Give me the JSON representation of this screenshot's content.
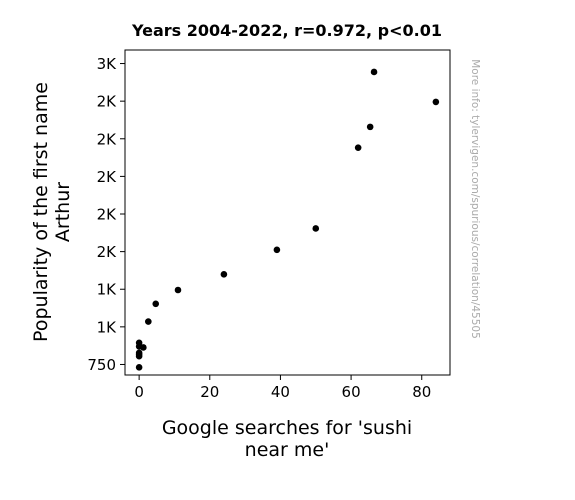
{
  "chart_data": {
    "type": "scatter",
    "title": "Years 2004-2022, r=0.972, p<0.01",
    "xlabel_lines": [
      "Google searches for 'sushi",
      "near me'"
    ],
    "ylabel_lines": [
      "Popularity of the first name",
      "Arthur"
    ],
    "xlim": [
      -4,
      88
    ],
    "ylim": [
      680,
      2840
    ],
    "x_ticks": [
      {
        "value": 0,
        "label": "0"
      },
      {
        "value": 20,
        "label": "20"
      },
      {
        "value": 40,
        "label": "40"
      },
      {
        "value": 60,
        "label": "60"
      },
      {
        "value": 80,
        "label": "80"
      }
    ],
    "y_ticks": [
      {
        "value": 750,
        "label": "750"
      },
      {
        "value": 1000,
        "label": "1K"
      },
      {
        "value": 1250,
        "label": "1K"
      },
      {
        "value": 1500,
        "label": "2K"
      },
      {
        "value": 1750,
        "label": "2K"
      },
      {
        "value": 2000,
        "label": "2K"
      },
      {
        "value": 2250,
        "label": "2K"
      },
      {
        "value": 2500,
        "label": "2K"
      },
      {
        "value": 2750,
        "label": "3K"
      }
    ],
    "points": [
      {
        "x": 0,
        "y": 731
      },
      {
        "x": 0,
        "y": 805
      },
      {
        "x": 0,
        "y": 817
      },
      {
        "x": 0,
        "y": 827
      },
      {
        "x": 0,
        "y": 870
      },
      {
        "x": 1.2,
        "y": 863
      },
      {
        "x": 0,
        "y": 894
      },
      {
        "x": 2.6,
        "y": 1035
      },
      {
        "x": 4.7,
        "y": 1153
      },
      {
        "x": 11,
        "y": 1245
      },
      {
        "x": 24,
        "y": 1349
      },
      {
        "x": 39,
        "y": 1512
      },
      {
        "x": 50,
        "y": 1654
      },
      {
        "x": 62,
        "y": 2191
      },
      {
        "x": 65.4,
        "y": 2329
      },
      {
        "x": 66.5,
        "y": 2694
      },
      {
        "x": 84,
        "y": 2495
      }
    ],
    "marker_color": "#000000",
    "grid": false
  },
  "watermark": "More info: tylervigen.com/spurious/correlation/45505"
}
